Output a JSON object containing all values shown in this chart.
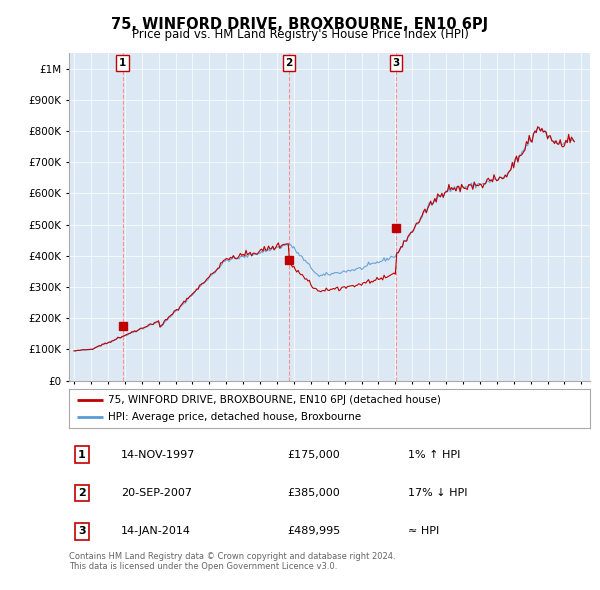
{
  "title": "75, WINFORD DRIVE, BROXBOURNE, EN10 6PJ",
  "subtitle": "Price paid vs. HM Land Registry's House Price Index (HPI)",
  "hpi_line_color": "#5B9BD5",
  "price_line_color": "#C00000",
  "dot_color": "#C00000",
  "vline_color": "#FF8888",
  "background_color": "#FFFFFF",
  "chart_bg_color": "#DCE9F5",
  "grid_color": "#FFFFFF",
  "ylim": [
    0,
    1050000
  ],
  "yticks": [
    0,
    100000,
    200000,
    300000,
    400000,
    500000,
    600000,
    700000,
    800000,
    900000,
    1000000
  ],
  "legend_line1": "75, WINFORD DRIVE, BROXBOURNE, EN10 6PJ (detached house)",
  "legend_line2": "HPI: Average price, detached house, Broxbourne",
  "footer": "Contains HM Land Registry data © Crown copyright and database right 2024.\nThis data is licensed under the Open Government Licence v3.0.",
  "transaction_dates": [
    1997.868,
    2007.722,
    2014.038
  ],
  "transaction_prices": [
    175000,
    385000,
    489995
  ],
  "transaction_labels": [
    "1",
    "2",
    "3"
  ]
}
